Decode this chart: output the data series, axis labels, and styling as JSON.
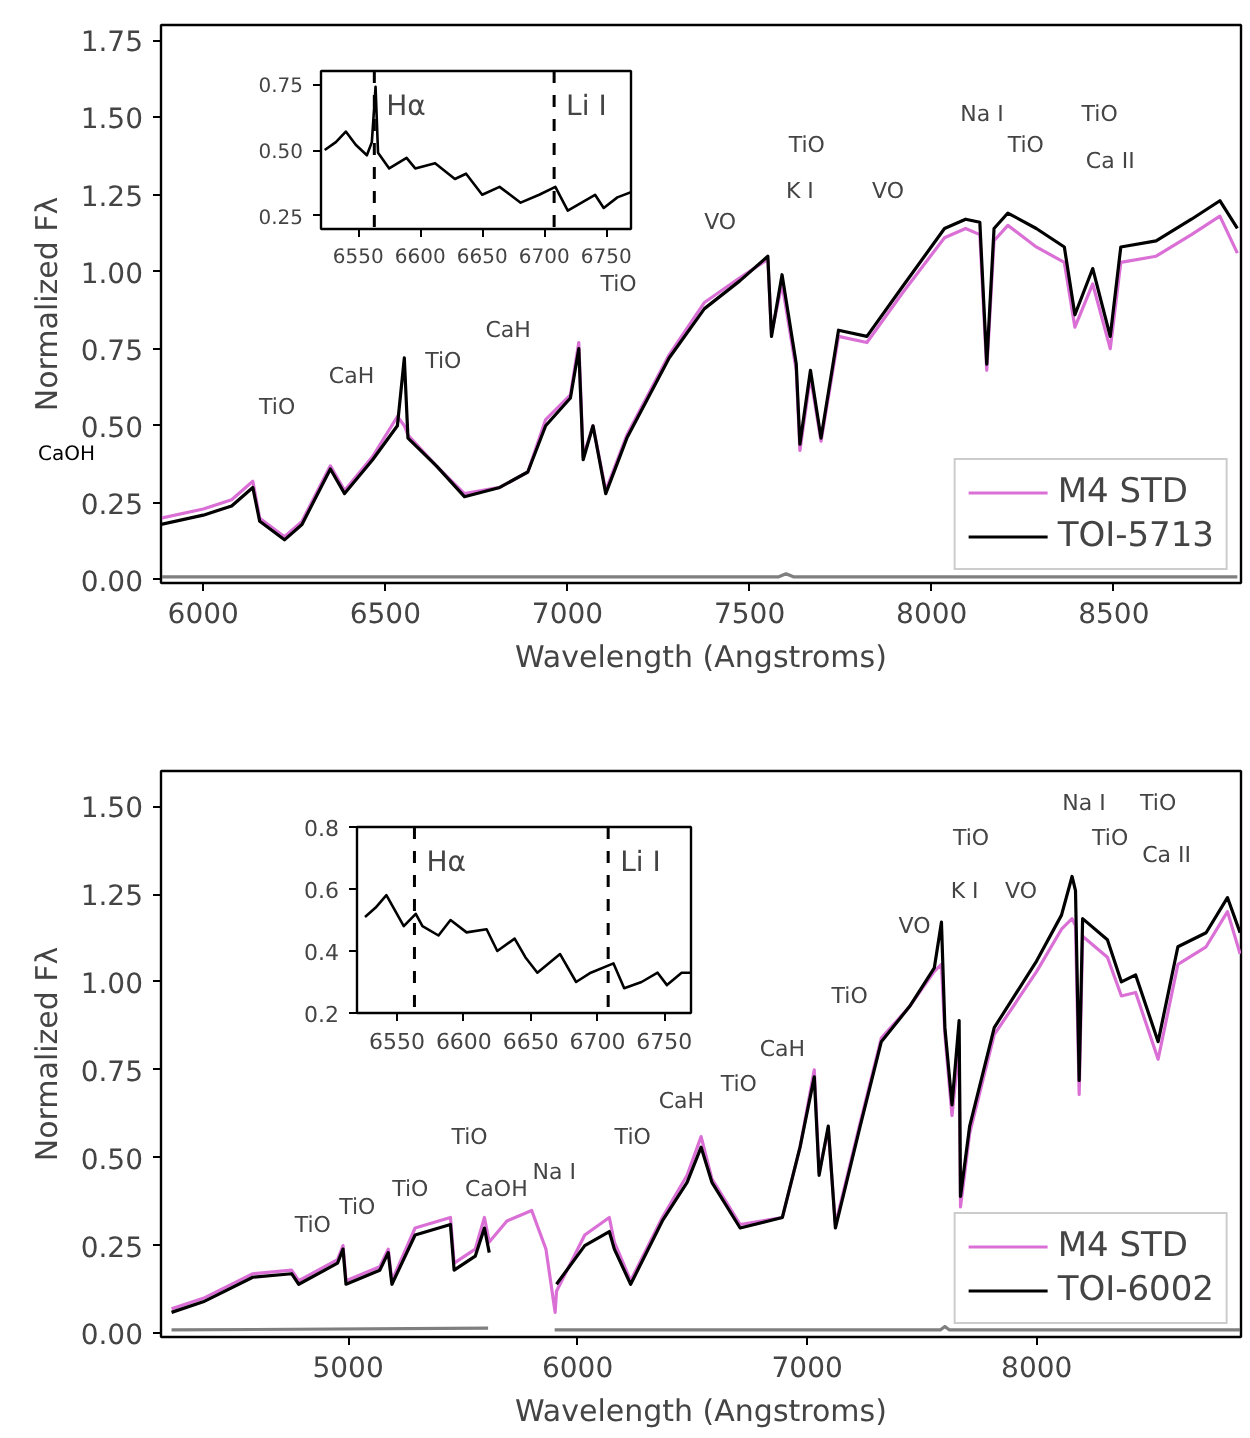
{
  "chart_data": [
    {
      "type": "line",
      "xlabel": "Wavelength (Angstroms)",
      "ylabel": "Normalized Fλ",
      "xlim": [
        5884,
        8849
      ],
      "ylim": [
        -0.01,
        1.8
      ],
      "xticks": [
        6000,
        6500,
        7000,
        7500,
        8000,
        8500
      ],
      "yticks": [
        {
          "value": 0,
          "label": "0.00"
        },
        0.25,
        {
          "value": 0.5,
          "label": "0.50"
        },
        0.75,
        {
          "value": 1,
          "label": "1.00"
        },
        1.25,
        {
          "value": 1.5,
          "label": "1.50"
        },
        1.75
      ],
      "x": [
        5884,
        6000,
        6078,
        6136,
        6155,
        6223,
        6271,
        6349,
        6388,
        6465,
        6533,
        6552,
        6562,
        6640,
        6717,
        6814,
        6891,
        6940,
        7008,
        7031,
        7043,
        7070,
        7105,
        7163,
        7279,
        7376,
        7473,
        7550,
        7560,
        7589,
        7628,
        7638,
        7667,
        7696,
        7744,
        7822,
        7919,
        8035,
        8093,
        8132,
        8151,
        8171,
        8209,
        8287,
        8364,
        8393,
        8442,
        8490,
        8519,
        8616,
        8713,
        8791,
        8839
      ],
      "series": [
        {
          "name": "M4 STD",
          "color": "#da70d6",
          "values": [
            0.2,
            0.23,
            0.26,
            0.32,
            0.2,
            0.14,
            0.19,
            0.37,
            0.29,
            0.4,
            0.53,
            0.5,
            0.47,
            0.37,
            0.28,
            0.3,
            0.35,
            0.52,
            0.6,
            0.77,
            0.4,
            0.5,
            0.29,
            0.47,
            0.73,
            0.9,
            0.98,
            1.04,
            0.8,
            0.96,
            0.68,
            0.42,
            0.66,
            0.45,
            0.79,
            0.77,
            0.93,
            1.11,
            1.14,
            1.12,
            0.68,
            1.1,
            1.15,
            1.08,
            1.03,
            0.82,
            0.96,
            0.75,
            1.03,
            1.05,
            1.12,
            1.18,
            1.06
          ]
        },
        {
          "name": "TOI-5713",
          "color": "#000000",
          "values": [
            0.18,
            0.21,
            0.24,
            0.3,
            0.19,
            0.13,
            0.18,
            0.36,
            0.28,
            0.39,
            0.5,
            0.72,
            0.46,
            0.37,
            0.27,
            0.3,
            0.35,
            0.5,
            0.59,
            0.75,
            0.39,
            0.5,
            0.28,
            0.46,
            0.72,
            0.88,
            0.97,
            1.05,
            0.79,
            0.99,
            0.7,
            0.44,
            0.68,
            0.46,
            0.81,
            0.79,
            0.95,
            1.14,
            1.17,
            1.16,
            0.7,
            1.14,
            1.19,
            1.14,
            1.08,
            0.86,
            1.01,
            0.79,
            1.08,
            1.1,
            1.17,
            1.23,
            1.14
          ]
        },
        {
          "color": "#7f7f7f",
          "x": [
            5884,
            7580,
            7600,
            7620,
            8839
          ],
          "values": [
            0.01,
            0.01,
            0.02,
            0.01,
            0.01
          ]
        }
      ],
      "annotations": [
        "CaOH",
        "TiO",
        "CaH",
        "TiO",
        "CaH",
        "TiO",
        "VO",
        "TiO",
        "K I",
        "VO",
        "Na I",
        "TiO",
        "TiO",
        "Ca II"
      ],
      "legend": "bottom right",
      "grid": false
    },
    {
      "type": "line",
      "xlim": [
        6520,
        6770
      ],
      "ylim": [
        0.2,
        0.8
      ],
      "xticks": [
        6550,
        6600,
        6650,
        6700,
        6750
      ],
      "yticks": [
        0.25,
        {
          "value": 0.5,
          "label": "0.50"
        },
        0.75
      ],
      "x": [
        6523,
        6532,
        6540,
        6548,
        6557,
        6561,
        6564,
        6566,
        6575,
        6589,
        6596,
        6612,
        6628,
        6637,
        6650,
        6664,
        6681,
        6696,
        6709,
        6719,
        6741,
        6748,
        6759,
        6770
      ],
      "series": [
        {
          "color": "#000000",
          "values": [
            0.5,
            0.53,
            0.57,
            0.52,
            0.48,
            0.53,
            0.74,
            0.49,
            0.43,
            0.47,
            0.43,
            0.45,
            0.39,
            0.41,
            0.33,
            0.36,
            0.3,
            0.33,
            0.36,
            0.27,
            0.33,
            0.28,
            0.32,
            0.34
          ]
        }
      ],
      "ref_lines": [
        {
          "axis": "x",
          "value": 6563,
          "label": "Hα",
          "line_style": "dashed"
        },
        {
          "axis": "x",
          "value": 6708,
          "label": "Li I",
          "line_style": "dashed"
        }
      ],
      "grid": false
    },
    {
      "type": "line",
      "xlabel": "Wavelength (Angstroms)",
      "ylabel": "Normalized Fλ",
      "xlim": [
        4185,
        8890
      ],
      "ylim": [
        -0.01,
        1.6
      ],
      "xticks": [
        5000,
        6000,
        7000,
        8000
      ],
      "yticks": [
        {
          "value": 0,
          "label": "0.00"
        },
        0.25,
        {
          "value": 0.5,
          "label": "0.50"
        },
        0.75,
        {
          "value": 1,
          "label": "1.00"
        },
        1.25,
        {
          "value": 1.5,
          "label": "1.50"
        }
      ],
      "x": [
        4231,
        4369,
        4585,
        4754,
        4785,
        4954,
        4978,
        4991,
        5138,
        5175,
        5191,
        5292,
        5446,
        5462,
        5554,
        5594,
        5615,
        5692,
        5800,
        5862,
        5902,
        5908,
        6031,
        6138,
        6160,
        6231,
        6369,
        6477,
        6538,
        6585,
        6708,
        6892,
        6969,
        7031,
        7052,
        7092,
        7123,
        7231,
        7323,
        7446,
        7554,
        7585,
        7600,
        7631,
        7662,
        7668,
        7708,
        7815,
        8000,
        8108,
        8154,
        8169,
        8185,
        8200,
        8308,
        8369,
        8431,
        8529,
        8615,
        8738,
        8831,
        8886
      ],
      "series": [
        {
          "name": "M4 STD",
          "color": "#da70d6",
          "values": [
            0.07,
            0.1,
            0.17,
            0.18,
            0.15,
            0.21,
            0.25,
            0.15,
            0.19,
            0.24,
            0.15,
            0.3,
            0.33,
            0.2,
            0.24,
            0.33,
            0.26,
            0.32,
            0.35,
            0.24,
            0.06,
            0.12,
            0.28,
            0.33,
            0.26,
            0.15,
            0.33,
            0.45,
            0.56,
            0.44,
            0.31,
            0.33,
            0.53,
            0.75,
            0.46,
            0.58,
            0.31,
            0.6,
            0.84,
            0.93,
            1.03,
            1.05,
            0.85,
            0.62,
            0.82,
            0.36,
            0.57,
            0.85,
            1.03,
            1.15,
            1.18,
            1.16,
            0.68,
            1.13,
            1.07,
            0.96,
            0.97,
            0.78,
            1.05,
            1.1,
            1.2,
            1.08
          ]
        },
        {
          "name": "TOI-6002",
          "color": "#000000",
          "values": [
            0.06,
            0.09,
            0.16,
            0.17,
            0.14,
            0.2,
            0.24,
            0.14,
            0.18,
            0.23,
            0.14,
            0.28,
            0.31,
            0.18,
            0.22,
            0.3,
            0.23,
            null,
            null,
            null,
            null,
            0.14,
            0.25,
            0.29,
            0.24,
            0.14,
            0.32,
            0.43,
            0.53,
            0.43,
            0.3,
            0.33,
            0.53,
            0.73,
            0.45,
            0.59,
            0.3,
            0.59,
            0.83,
            0.93,
            1.04,
            1.17,
            0.87,
            0.65,
            0.89,
            0.39,
            0.59,
            0.87,
            1.06,
            1.19,
            1.3,
            1.26,
            0.72,
            1.18,
            1.12,
            1.0,
            1.02,
            0.83,
            1.1,
            1.14,
            1.24,
            1.14
          ]
        },
        {
          "color": "#7f7f7f",
          "x": [
            4231,
            5610,
            5625,
            5900,
            7580,
            7600,
            7620,
            8886
          ],
          "values": [
            0.01,
            0.015,
            null,
            0.01,
            0.01,
            0.02,
            0.01,
            0.01
          ]
        }
      ],
      "annotations": [
        "TiO",
        "TiO",
        "TiO",
        "TiO",
        "CaOH",
        "Na I",
        "TiO",
        "CaH",
        "TiO",
        "CaH",
        "TiO",
        "VO",
        "TiO",
        "K I",
        "VO",
        "Na I",
        "TiO",
        "TiO",
        "Ca II"
      ],
      "legend": "bottom right",
      "grid": false
    },
    {
      "type": "line",
      "xlim": [
        6520,
        6770
      ],
      "ylim": [
        0.2,
        0.8
      ],
      "xticks": [
        6550,
        6600,
        6650,
        6700,
        6750
      ],
      "yticks": [
        0.2,
        0.4,
        0.6,
        0.8
      ],
      "x": [
        6526,
        6534,
        6542,
        6555,
        6564,
        6569,
        6581,
        6590,
        6602,
        6617,
        6625,
        6638,
        6646,
        6655,
        6672,
        6684,
        6695,
        6712,
        6720,
        6733,
        6745,
        6752,
        6763,
        6770
      ],
      "series": [
        {
          "color": "#000000",
          "values": [
            0.51,
            0.54,
            0.58,
            0.48,
            0.52,
            0.48,
            0.45,
            0.5,
            0.46,
            0.47,
            0.4,
            0.44,
            0.38,
            0.33,
            0.39,
            0.3,
            0.33,
            0.36,
            0.28,
            0.3,
            0.33,
            0.29,
            0.33,
            0.33
          ]
        }
      ],
      "ref_lines": [
        {
          "axis": "x",
          "value": 6563,
          "label": "Hα",
          "line_style": "dashed"
        },
        {
          "axis": "x",
          "value": 6708,
          "label": "Li I",
          "line_style": "dashed"
        }
      ],
      "grid": false
    }
  ]
}
